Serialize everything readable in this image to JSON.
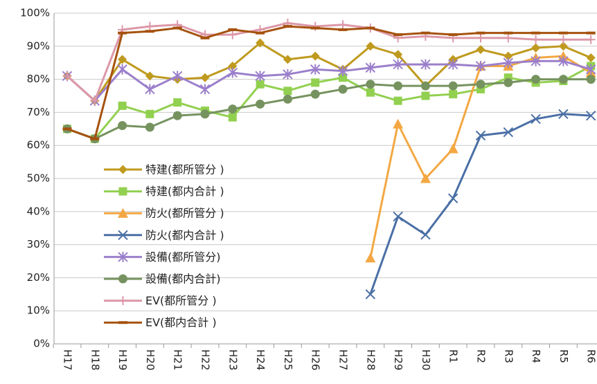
{
  "chart_data": {
    "type": "line",
    "categories": [
      "H17",
      "H18",
      "H19",
      "H20",
      "H21",
      "H22",
      "H23",
      "H24",
      "H25",
      "H26",
      "H27",
      "H28",
      "H29",
      "H30",
      "R1",
      "R2",
      "R3",
      "R4",
      "R5",
      "R6"
    ],
    "ylim": [
      0,
      100
    ],
    "yticks": [
      {
        "value": 0,
        "label": "0%"
      },
      {
        "value": 10,
        "label": "10%"
      },
      {
        "value": 20,
        "label": "20%"
      },
      {
        "value": 30,
        "label": "30%"
      },
      {
        "value": 40,
        "label": "40%"
      },
      {
        "value": 50,
        "label": "50%"
      },
      {
        "value": 60,
        "label": "60%"
      },
      {
        "value": 70,
        "label": "70%"
      },
      {
        "value": 80,
        "label": "80%"
      },
      {
        "value": 90,
        "label": "90%"
      },
      {
        "value": 100,
        "label": "100%"
      }
    ],
    "grid": true,
    "legend": "left",
    "series": [
      {
        "name": "特建(都所管分 )",
        "color": "#bf9a1e",
        "marker": "diamond",
        "values": [
          81,
          73.5,
          86,
          81,
          80,
          80.5,
          84,
          91,
          86,
          87,
          83,
          90,
          87.5,
          78,
          86,
          89,
          87,
          89.5,
          90,
          86.5
        ]
      },
      {
        "name": "特建(都内合計 )",
        "color": "#92d050",
        "marker": "square",
        "values": [
          65,
          62,
          72,
          69.5,
          73,
          70.5,
          68.5,
          78.5,
          76.5,
          79,
          80.5,
          76,
          73.5,
          75,
          75.5,
          77,
          80.5,
          79,
          79.5,
          84
        ]
      },
      {
        "name": "防火(都所管分 )",
        "color": "#f4a742",
        "marker": "triangle",
        "values": [
          null,
          null,
          null,
          null,
          null,
          null,
          null,
          null,
          null,
          null,
          null,
          26,
          66.5,
          50,
          59,
          84,
          84,
          86.5,
          87,
          82
        ]
      },
      {
        "name": "防火(都内合計 )",
        "color": "#4a6fa5",
        "marker": "x",
        "values": [
          null,
          null,
          null,
          null,
          null,
          null,
          null,
          null,
          null,
          null,
          null,
          15,
          38.5,
          33,
          44,
          63,
          64,
          68,
          69.5,
          69
        ]
      },
      {
        "name": "設備(都所管分)",
        "color": "#9b7fcb",
        "marker": "star",
        "values": [
          81,
          73.5,
          83,
          77,
          81,
          77,
          82,
          81,
          81.5,
          83,
          82.5,
          83.5,
          84.5,
          84.5,
          84.5,
          84,
          85,
          85.5,
          85.5,
          83
        ]
      },
      {
        "name": "設備(都内合計)",
        "color": "#76935f",
        "marker": "circle",
        "values": [
          65,
          62,
          66,
          65.5,
          69,
          69.5,
          71,
          72.5,
          74,
          75.5,
          77,
          78.5,
          78,
          78,
          78,
          78.5,
          79,
          80,
          80,
          80
        ]
      },
      {
        "name": "EV(都所管分 )",
        "color": "#dc98a8",
        "marker": "plus",
        "values": [
          81,
          73.5,
          95,
          96,
          96.5,
          93.5,
          93.5,
          95,
          97,
          96,
          96.5,
          95.5,
          92.5,
          93,
          92.5,
          92.5,
          92.5,
          92,
          92,
          92
        ]
      },
      {
        "name": "EV(都内合計 )",
        "color": "#a5520e",
        "marker": "dash",
        "values": [
          65,
          62,
          94,
          94.5,
          95.5,
          92.5,
          95,
          94,
          96,
          95.5,
          95,
          95.5,
          93.5,
          94,
          93.5,
          94,
          94,
          94,
          94,
          94
        ]
      }
    ]
  }
}
